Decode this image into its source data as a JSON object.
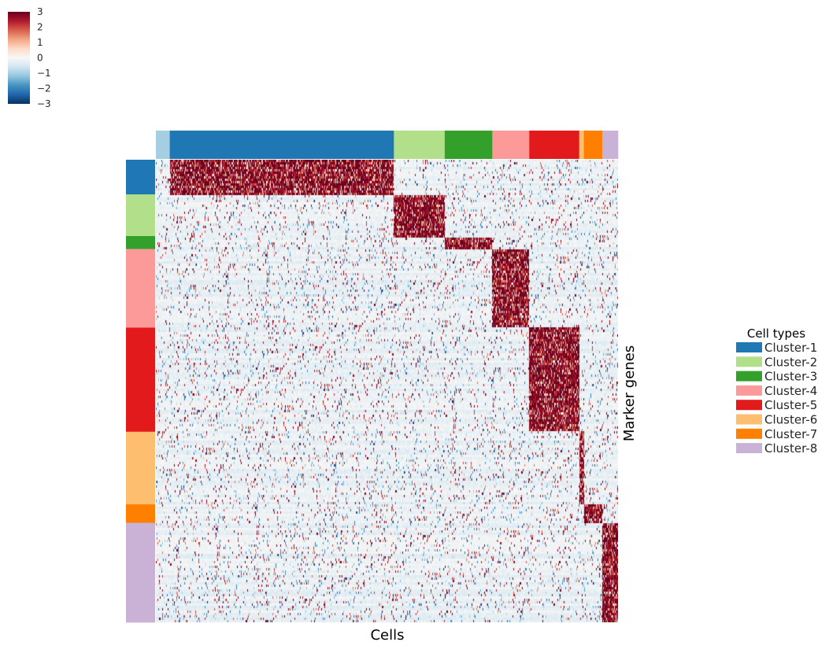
{
  "chart_data": {
    "type": "heatmap",
    "xlabel": "Cells",
    "ylabel": "Marker genes",
    "colorbar": {
      "min": -3,
      "max": 3,
      "ticks": [
        {
          "value": 3,
          "label": "3"
        },
        {
          "value": 2,
          "label": "2"
        },
        {
          "value": 1,
          "label": "1"
        },
        {
          "value": 0,
          "label": "0"
        },
        {
          "value": -1,
          "label": "−1"
        },
        {
          "value": -2,
          "label": "−2"
        },
        {
          "value": -3,
          "label": "−3"
        }
      ],
      "colors": [
        "#053061",
        "#2166ac",
        "#4393c3",
        "#92c5de",
        "#d1e5f0",
        "#f7f7f7",
        "#fddbc7",
        "#f4a582",
        "#d6604d",
        "#b2182b",
        "#67001f"
      ]
    },
    "legend": {
      "title": "Cell types",
      "placement": "right"
    },
    "clusters": [
      {
        "name": "Cluster-1",
        "color": "#1f78b4",
        "cell_fraction": 0.485,
        "gene_fraction": 0.075
      },
      {
        "name": "Cluster-2",
        "color": "#b2df8a",
        "cell_fraction": 0.11,
        "gene_fraction": 0.09
      },
      {
        "name": "Cluster-3",
        "color": "#33a02c",
        "cell_fraction": 0.103,
        "gene_fraction": 0.028
      },
      {
        "name": "Cluster-4",
        "color": "#fb9a99",
        "cell_fraction": 0.08,
        "gene_fraction": 0.17
      },
      {
        "name": "Cluster-5",
        "color": "#e31a1c",
        "cell_fraction": 0.108,
        "gene_fraction": 0.225
      },
      {
        "name": "Cluster-6",
        "color": "#fdbf6f",
        "cell_fraction": 0.01,
        "gene_fraction": 0.157
      },
      {
        "name": "Cluster-7",
        "color": "#ff7f00",
        "cell_fraction": 0.04,
        "gene_fraction": 0.04
      },
      {
        "name": "Cluster-8",
        "color": "#cab2d6",
        "cell_fraction": 0.034,
        "gene_fraction": 0.215
      }
    ],
    "extra_cell_group": {
      "color": "#a6cee3",
      "cell_fraction": 0.03
    }
  }
}
